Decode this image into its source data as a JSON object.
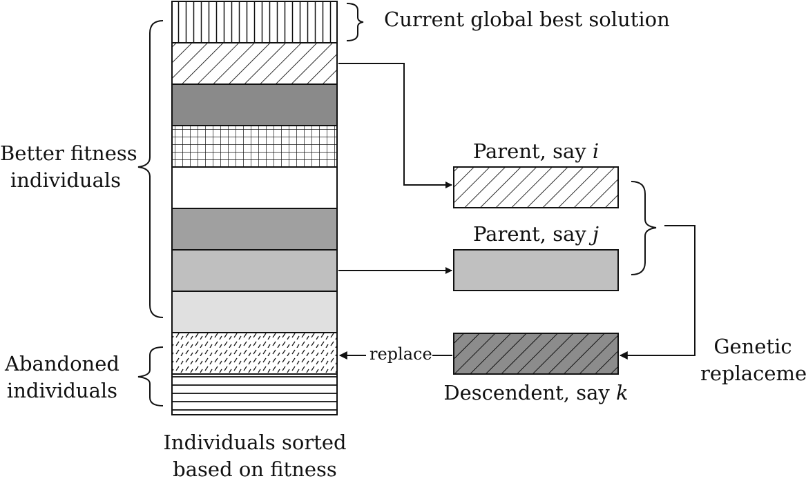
{
  "labels": {
    "global_best": "Current global best solution",
    "better_fitness": [
      "Better fitness",
      "individuals"
    ],
    "abandoned": [
      "Abandoned",
      "individuals"
    ],
    "sorted": [
      "Individuals sorted",
      "based on fitness"
    ],
    "parent_i_prefix": "Parent, say ",
    "parent_i_var": "i",
    "parent_j_prefix": "Parent, say ",
    "parent_j_var": "j",
    "descendent_prefix": "Descendent, say ",
    "descendent_var": "k",
    "genetic_replacement": [
      "Genetic",
      "replacement"
    ],
    "replace": "replace"
  },
  "population": [
    {
      "pattern": "vertical-lines"
    },
    {
      "pattern": "diagonal-hatch"
    },
    {
      "pattern": "solid",
      "color": "#8a8a8a"
    },
    {
      "pattern": "grid"
    },
    {
      "pattern": "solid",
      "color": "#ffffff"
    },
    {
      "pattern": "solid",
      "color": "#a0a0a0"
    },
    {
      "pattern": "solid",
      "color": "#bfbfbf"
    },
    {
      "pattern": "solid",
      "color": "#e0e0e0"
    },
    {
      "pattern": "dashed-dots"
    },
    {
      "pattern": "horizontal-lines"
    }
  ],
  "colors": {
    "stroke": "#111111",
    "parent_j_fill": "#c0c0c0",
    "descendent_fill": "#8c8c8c"
  }
}
